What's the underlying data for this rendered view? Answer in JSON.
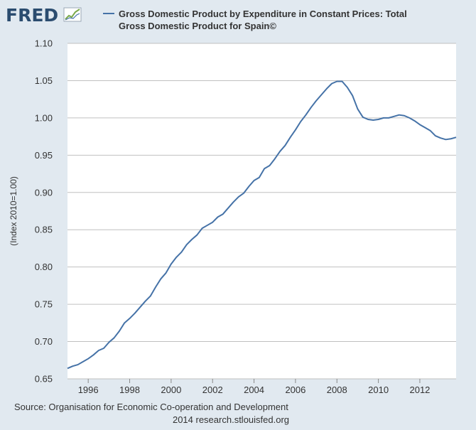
{
  "header": {
    "logo_text": "FRED",
    "legend_line1": "Gross Domestic Product by Expenditure in Constant Prices: Total",
    "legend_line2": "Gross Domestic Product for Spain©"
  },
  "footer": {
    "source": "Source: Organisation for Economic Co-operation and Development",
    "credit": "2014 research.stlouisfed.org"
  },
  "colors": {
    "page_background": "#e1e9f0",
    "plot_background": "#ffffff",
    "line": "#4572a7",
    "gridline": "#c0c0c0",
    "text": "#333333",
    "logo": "#2b4c6f"
  },
  "chart_data": {
    "type": "line",
    "title": "",
    "xlabel": "",
    "ylabel": "(Index 2010=1.00)",
    "xlim": [
      1995,
      2013.75
    ],
    "ylim": [
      0.65,
      1.1
    ],
    "yticks": [
      "0.65",
      "0.70",
      "0.75",
      "0.80",
      "0.85",
      "0.90",
      "0.95",
      "1.00",
      "1.05",
      "1.10"
    ],
    "xticks": [
      "1996",
      "1998",
      "2000",
      "2002",
      "2004",
      "2006",
      "2008",
      "2010",
      "2012"
    ],
    "grid": "horizontal",
    "legend": "top",
    "series": [
      {
        "name": "Gross Domestic Product by Expenditure in Constant Prices: Total Gross Domestic Product for Spain©",
        "x": [
          1995.0,
          1995.25,
          1995.5,
          1995.75,
          1996.0,
          1996.25,
          1996.5,
          1996.75,
          1997.0,
          1997.25,
          1997.5,
          1997.75,
          1998.0,
          1998.25,
          1998.5,
          1998.75,
          1999.0,
          1999.25,
          1999.5,
          1999.75,
          2000.0,
          2000.25,
          2000.5,
          2000.75,
          2001.0,
          2001.25,
          2001.5,
          2001.75,
          2002.0,
          2002.25,
          2002.5,
          2002.75,
          2003.0,
          2003.25,
          2003.5,
          2003.75,
          2004.0,
          2004.25,
          2004.5,
          2004.75,
          2005.0,
          2005.25,
          2005.5,
          2005.75,
          2006.0,
          2006.25,
          2006.5,
          2006.75,
          2007.0,
          2007.25,
          2007.5,
          2007.75,
          2008.0,
          2008.25,
          2008.5,
          2008.75,
          2009.0,
          2009.25,
          2009.5,
          2009.75,
          2010.0,
          2010.25,
          2010.5,
          2010.75,
          2011.0,
          2011.25,
          2011.5,
          2011.75,
          2012.0,
          2012.25,
          2012.5,
          2012.75,
          2013.0,
          2013.25,
          2013.5,
          2013.75
        ],
        "values": [
          0.664,
          0.667,
          0.669,
          0.673,
          0.677,
          0.682,
          0.688,
          0.691,
          0.699,
          0.705,
          0.714,
          0.725,
          0.731,
          0.738,
          0.746,
          0.754,
          0.761,
          0.773,
          0.784,
          0.792,
          0.804,
          0.813,
          0.82,
          0.83,
          0.837,
          0.843,
          0.852,
          0.856,
          0.86,
          0.867,
          0.871,
          0.879,
          0.887,
          0.894,
          0.899,
          0.908,
          0.916,
          0.92,
          0.932,
          0.936,
          0.945,
          0.955,
          0.963,
          0.974,
          0.984,
          0.995,
          1.004,
          1.014,
          1.023,
          1.031,
          1.039,
          1.046,
          1.049,
          1.049,
          1.041,
          1.03,
          1.012,
          1.001,
          0.998,
          0.997,
          0.998,
          1.0,
          1.0,
          1.002,
          1.004,
          1.003,
          1.0,
          0.996,
          0.991,
          0.987,
          0.983,
          0.976,
          0.973,
          0.971,
          0.972,
          0.974
        ]
      }
    ]
  }
}
